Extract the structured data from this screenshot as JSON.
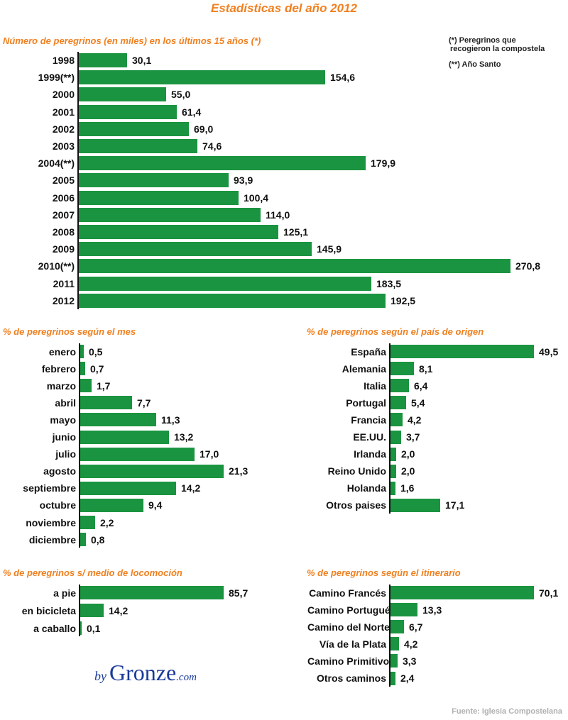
{
  "title": "Estadísticas del año 2012",
  "notes": {
    "single": "(*)   Peregrinos que",
    "single_2": "recogieron la compostela",
    "double": "(**) Año Santo"
  },
  "logo": {
    "by": "by",
    "name": "Gronze",
    "com": ".com"
  },
  "source": "Fuente: Iglesia Compostelana",
  "chart_data": [
    {
      "type": "bar",
      "orientation": "horizontal",
      "title": "Número de peregrinos (en miles) en los últimos 15 años (*)",
      "categories": [
        "1998",
        "1999(**)",
        "2000",
        "2001",
        "2002",
        "2003",
        "2004(**)",
        "2005",
        "2006",
        "2007",
        "2008",
        "2009",
        "2010(**)",
        "2011",
        "2012"
      ],
      "values": [
        30.1,
        154.6,
        55.0,
        61.4,
        69.0,
        74.6,
        179.9,
        93.9,
        100.4,
        114.0,
        125.1,
        145.9,
        270.8,
        183.5,
        192.5
      ],
      "labels": [
        "30,1",
        "154,6",
        "55,0",
        "61,4",
        "69,0",
        "74,6",
        "179,9",
        "93,9",
        "100,4",
        "114,0",
        "125,1",
        "145,9",
        "270,8",
        "183,5",
        "192,5"
      ],
      "bar_color": "#1a9440"
    },
    {
      "type": "bar",
      "orientation": "horizontal",
      "title": "% de peregrinos según el mes",
      "categories": [
        "enero",
        "febrero",
        "marzo",
        "abril",
        "mayo",
        "junio",
        "julio",
        "agosto",
        "septiembre",
        "octubre",
        "noviembre",
        "diciembre"
      ],
      "values": [
        0.5,
        0.7,
        1.7,
        7.7,
        11.3,
        13.2,
        17.0,
        21.3,
        14.2,
        9.4,
        2.2,
        0.8
      ],
      "labels": [
        "0,5",
        "0,7",
        "1,7",
        "7,7",
        "11,3",
        "13,2",
        "17,0",
        "21,3",
        "14,2",
        "9,4",
        "2,2",
        "0,8"
      ],
      "bar_color": "#1a9440"
    },
    {
      "type": "bar",
      "orientation": "horizontal",
      "title": "% de peregrinos según el país de origen",
      "categories": [
        "España",
        "Alemania",
        "Italia",
        "Portugal",
        "Francia",
        "EE.UU.",
        "Irlanda",
        "Reino Unido",
        "Holanda",
        "Otros paises"
      ],
      "values": [
        49.5,
        8.1,
        6.4,
        5.4,
        4.2,
        3.7,
        2.0,
        2.0,
        1.6,
        17.1
      ],
      "labels": [
        "49,5",
        "8,1",
        "6,4",
        "5,4",
        "4,2",
        "3,7",
        "2,0",
        "2,0",
        "1,6",
        "17,1"
      ],
      "bar_color": "#1a9440"
    },
    {
      "type": "bar",
      "orientation": "horizontal",
      "title": "% de peregrinos s/ medio de locomoción",
      "categories": [
        "a pie",
        "en bicicleta",
        "a caballo"
      ],
      "values": [
        85.7,
        14.2,
        0.1
      ],
      "labels": [
        "85,7",
        "14,2",
        "0,1"
      ],
      "bar_color": "#1a9440"
    },
    {
      "type": "bar",
      "orientation": "horizontal",
      "title": "% de peregrinos según el itinerario",
      "categories": [
        "Camino Francés",
        "Camino Portugués",
        "Camino del Norte",
        "Vía de la Plata",
        "Camino Primitivo",
        "Otros caminos"
      ],
      "values": [
        70.1,
        13.3,
        6.7,
        4.2,
        3.3,
        2.4
      ],
      "labels": [
        "70,1",
        "13,3",
        "6,7",
        "4,2",
        "3,3",
        "2,4"
      ],
      "bar_color": "#1a9440"
    }
  ]
}
